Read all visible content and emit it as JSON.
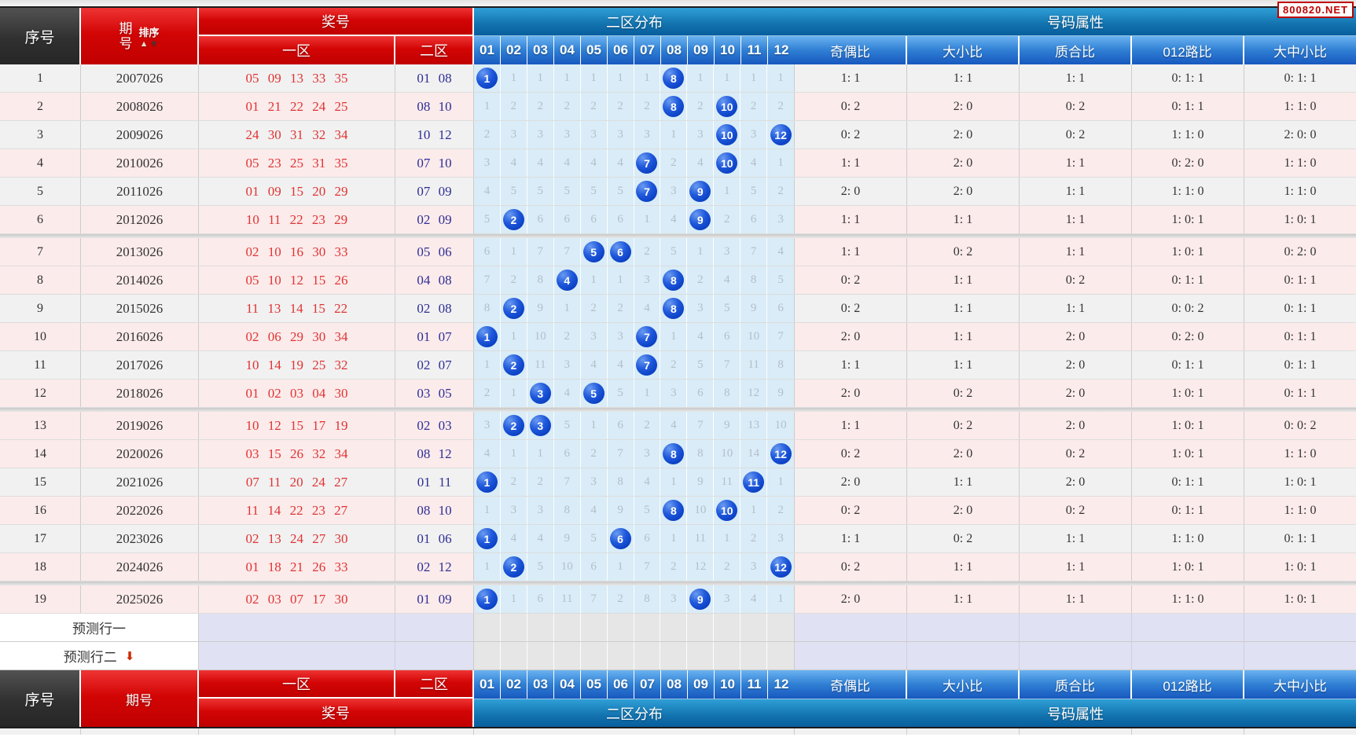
{
  "badge": "800820.NET",
  "icons": {
    "sort_up": "▲",
    "sort_down": "▼",
    "pred_arrow": "⬇"
  },
  "header": {
    "col_serial": "序号",
    "col_period": "期号",
    "period_char_top": "期",
    "period_char_bottom": "号",
    "sort_label": "排序",
    "col_prize": "奖号",
    "zone1": "一区",
    "zone2": "二区",
    "dist_title": "二区分布",
    "dist_cols": [
      "01",
      "02",
      "03",
      "04",
      "05",
      "06",
      "07",
      "08",
      "09",
      "10",
      "11",
      "12"
    ],
    "attr_title": "号码属性",
    "attr_cols": [
      "奇偶比",
      "大小比",
      "质合比",
      "012路比",
      "大中小比"
    ]
  },
  "prediction_rows": [
    {
      "label": "预测行一",
      "arrow": false
    },
    {
      "label": "预测行二",
      "arrow": true
    }
  ],
  "rows": [
    {
      "no": "1",
      "period": "2007026",
      "zone1": "05 09 13 33 35",
      "zone2": "01 08",
      "shade": "gray",
      "dist": [
        "1",
        "1",
        "1",
        "1",
        "1",
        "1",
        "1",
        "8",
        "1",
        "1",
        "1",
        "1"
      ],
      "hits": [
        1,
        8
      ],
      "attrs": [
        "1: 1",
        "1: 1",
        "1: 1",
        "0: 1: 1",
        "0: 1: 1"
      ]
    },
    {
      "no": "2",
      "period": "2008026",
      "zone1": "01 21 22 24 25",
      "zone2": "08 10",
      "shade": "pink",
      "dist": [
        "1",
        "2",
        "2",
        "2",
        "2",
        "2",
        "2",
        "8",
        "2",
        "10",
        "2",
        "2"
      ],
      "hits": [
        8,
        10
      ],
      "attrs": [
        "0: 2",
        "2: 0",
        "0: 2",
        "0: 1: 1",
        "1: 1: 0"
      ]
    },
    {
      "no": "3",
      "period": "2009026",
      "zone1": "24 30 31 32 34",
      "zone2": "10 12",
      "shade": "gray",
      "dist": [
        "2",
        "3",
        "3",
        "3",
        "3",
        "3",
        "3",
        "1",
        "3",
        "10",
        "3",
        "12"
      ],
      "hits": [
        10,
        12
      ],
      "attrs": [
        "0: 2",
        "2: 0",
        "0: 2",
        "1: 1: 0",
        "2: 0: 0"
      ]
    },
    {
      "no": "4",
      "period": "2010026",
      "zone1": "05 23 25 31 35",
      "zone2": "07 10",
      "shade": "pink",
      "dist": [
        "3",
        "4",
        "4",
        "4",
        "4",
        "4",
        "7",
        "2",
        "4",
        "10",
        "4",
        "1"
      ],
      "hits": [
        7,
        10
      ],
      "attrs": [
        "1: 1",
        "2: 0",
        "1: 1",
        "0: 2: 0",
        "1: 1: 0"
      ]
    },
    {
      "no": "5",
      "period": "2011026",
      "zone1": "01 09 15 20 29",
      "zone2": "07 09",
      "shade": "gray",
      "dist": [
        "4",
        "5",
        "5",
        "5",
        "5",
        "5",
        "7",
        "3",
        "9",
        "1",
        "5",
        "2"
      ],
      "hits": [
        7,
        9
      ],
      "attrs": [
        "2: 0",
        "2: 0",
        "1: 1",
        "1: 1: 0",
        "1: 1: 0"
      ]
    },
    {
      "no": "6",
      "period": "2012026",
      "zone1": "10 11 22 23 29",
      "zone2": "02 09",
      "shade": "pink",
      "dist": [
        "5",
        "2",
        "6",
        "6",
        "6",
        "6",
        "1",
        "4",
        "9",
        "2",
        "6",
        "3"
      ],
      "hits": [
        2,
        9
      ],
      "attrs": [
        "1: 1",
        "1: 1",
        "1: 1",
        "1: 0: 1",
        "1: 0: 1"
      ]
    },
    {
      "no": "7",
      "period": "2013026",
      "zone1": "02 10 16 30 33",
      "zone2": "05 06",
      "shade": "pink",
      "dist": [
        "6",
        "1",
        "7",
        "7",
        "5",
        "6",
        "2",
        "5",
        "1",
        "3",
        "7",
        "4"
      ],
      "hits": [
        5,
        6
      ],
      "attrs": [
        "1: 1",
        "0: 2",
        "1: 1",
        "1: 0: 1",
        "0: 2: 0"
      ]
    },
    {
      "no": "8",
      "period": "2014026",
      "zone1": "05 10 12 15 26",
      "zone2": "04 08",
      "shade": "pink",
      "dist": [
        "7",
        "2",
        "8",
        "4",
        "1",
        "1",
        "3",
        "8",
        "2",
        "4",
        "8",
        "5"
      ],
      "hits": [
        4,
        8
      ],
      "attrs": [
        "0: 2",
        "1: 1",
        "0: 2",
        "0: 1: 1",
        "0: 1: 1"
      ]
    },
    {
      "no": "9",
      "period": "2015026",
      "zone1": "11 13 14 15 22",
      "zone2": "02 08",
      "shade": "gray",
      "dist": [
        "8",
        "2",
        "9",
        "1",
        "2",
        "2",
        "4",
        "8",
        "3",
        "5",
        "9",
        "6"
      ],
      "hits": [
        2,
        8
      ],
      "attrs": [
        "0: 2",
        "1: 1",
        "1: 1",
        "0: 0: 2",
        "0: 1: 1"
      ]
    },
    {
      "no": "10",
      "period": "2016026",
      "zone1": "02 06 29 30 34",
      "zone2": "01 07",
      "shade": "pink",
      "dist": [
        "1",
        "1",
        "10",
        "2",
        "3",
        "3",
        "7",
        "1",
        "4",
        "6",
        "10",
        "7"
      ],
      "hits": [
        1,
        7
      ],
      "attrs": [
        "2: 0",
        "1: 1",
        "2: 0",
        "0: 2: 0",
        "0: 1: 1"
      ]
    },
    {
      "no": "11",
      "period": "2017026",
      "zone1": "10 14 19 25 32",
      "zone2": "02 07",
      "shade": "gray",
      "dist": [
        "1",
        "2",
        "11",
        "3",
        "4",
        "4",
        "7",
        "2",
        "5",
        "7",
        "11",
        "8"
      ],
      "hits": [
        2,
        7
      ],
      "attrs": [
        "1: 1",
        "1: 1",
        "2: 0",
        "0: 1: 1",
        "0: 1: 1"
      ]
    },
    {
      "no": "12",
      "period": "2018026",
      "zone1": "01 02 03 04 30",
      "zone2": "03 05",
      "shade": "pink",
      "dist": [
        "2",
        "1",
        "3",
        "4",
        "5",
        "5",
        "1",
        "3",
        "6",
        "8",
        "12",
        "9"
      ],
      "hits": [
        3,
        5
      ],
      "attrs": [
        "2: 0",
        "0: 2",
        "2: 0",
        "1: 0: 1",
        "0: 1: 1"
      ]
    },
    {
      "no": "13",
      "period": "2019026",
      "zone1": "10 12 15 17 19",
      "zone2": "02 03",
      "shade": "pink",
      "dist": [
        "3",
        "2",
        "3",
        "5",
        "1",
        "6",
        "2",
        "4",
        "7",
        "9",
        "13",
        "10"
      ],
      "hits": [
        2,
        3
      ],
      "attrs": [
        "1: 1",
        "0: 2",
        "2: 0",
        "1: 0: 1",
        "0: 0: 2"
      ]
    },
    {
      "no": "14",
      "period": "2020026",
      "zone1": "03 15 26 32 34",
      "zone2": "08 12",
      "shade": "pink",
      "dist": [
        "4",
        "1",
        "1",
        "6",
        "2",
        "7",
        "3",
        "8",
        "8",
        "10",
        "14",
        "12"
      ],
      "hits": [
        8,
        12
      ],
      "attrs": [
        "0: 2",
        "2: 0",
        "0: 2",
        "1: 0: 1",
        "1: 1: 0"
      ]
    },
    {
      "no": "15",
      "period": "2021026",
      "zone1": "07 11 20 24 27",
      "zone2": "01 11",
      "shade": "gray",
      "dist": [
        "1",
        "2",
        "2",
        "7",
        "3",
        "8",
        "4",
        "1",
        "9",
        "11",
        "11",
        "1"
      ],
      "hits": [
        1,
        11
      ],
      "attrs": [
        "2: 0",
        "1: 1",
        "2: 0",
        "0: 1: 1",
        "1: 0: 1"
      ]
    },
    {
      "no": "16",
      "period": "2022026",
      "zone1": "11 14 22 23 27",
      "zone2": "08 10",
      "shade": "pink",
      "dist": [
        "1",
        "3",
        "3",
        "8",
        "4",
        "9",
        "5",
        "8",
        "10",
        "10",
        "1",
        "2"
      ],
      "hits": [
        8,
        10
      ],
      "attrs": [
        "0: 2",
        "2: 0",
        "0: 2",
        "0: 1: 1",
        "1: 1: 0"
      ]
    },
    {
      "no": "17",
      "period": "2023026",
      "zone1": "02 13 24 27 30",
      "zone2": "01 06",
      "shade": "gray",
      "dist": [
        "1",
        "4",
        "4",
        "9",
        "5",
        "6",
        "6",
        "1",
        "11",
        "1",
        "2",
        "3"
      ],
      "hits": [
        1,
        6
      ],
      "attrs": [
        "1: 1",
        "0: 2",
        "1: 1",
        "1: 1: 0",
        "0: 1: 1"
      ]
    },
    {
      "no": "18",
      "period": "2024026",
      "zone1": "01 18 21 26 33",
      "zone2": "02 12",
      "shade": "pink",
      "dist": [
        "1",
        "2",
        "5",
        "10",
        "6",
        "1",
        "7",
        "2",
        "12",
        "2",
        "3",
        "12"
      ],
      "hits": [
        2,
        12
      ],
      "attrs": [
        "0: 2",
        "1: 1",
        "1: 1",
        "1: 0: 1",
        "1: 0: 1"
      ]
    },
    {
      "no": "19",
      "period": "2025026",
      "zone1": "02 03 07 17 30",
      "zone2": "01 09",
      "shade": "pink",
      "dist": [
        "1",
        "1",
        "6",
        "11",
        "7",
        "2",
        "8",
        "3",
        "9",
        "3",
        "4",
        "1"
      ],
      "hits": [
        1,
        9
      ],
      "attrs": [
        "2: 0",
        "1: 1",
        "1: 1",
        "1: 1: 0",
        "1: 0: 1"
      ]
    }
  ]
}
